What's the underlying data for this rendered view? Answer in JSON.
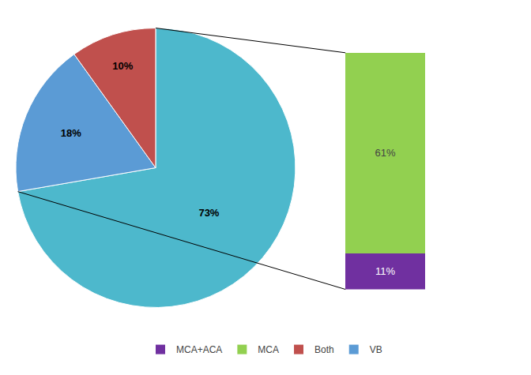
{
  "chart_data": [
    {
      "type": "pie",
      "categories": [
        null,
        "VB",
        "Both"
      ],
      "values": [
        73,
        18,
        10
      ],
      "value_labels": [
        "73%",
        "18%",
        "10%"
      ],
      "colors": [
        "#4db8cc",
        "#5b9bd5",
        "#c0504d"
      ],
      "data_labels": true,
      "legend": "bottom"
    },
    {
      "type": "bar",
      "stacked": true,
      "categories": [
        null
      ],
      "series": [
        {
          "name": "MCA+ACA",
          "color": "#7030a0",
          "values": [
            11
          ],
          "value_labels": [
            "11%"
          ]
        },
        {
          "name": "MCA",
          "color": "#92d050",
          "values": [
            61
          ],
          "value_labels": [
            "61%"
          ]
        }
      ],
      "ylim": [
        0,
        74
      ],
      "data_labels": true,
      "tick_labels": false,
      "legend": "bottom"
    }
  ]
}
